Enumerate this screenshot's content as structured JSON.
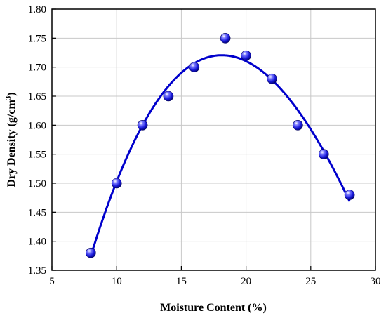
{
  "chart_data": {
    "type": "line",
    "title": "",
    "xlabel": "Moisture Content (%)",
    "ylabel_main": "Dry Density (g/cm",
    "ylabel_sup": "3",
    "ylabel_tail": ")",
    "xlim": [
      5,
      30
    ],
    "ylim": [
      1.35,
      1.8
    ],
    "xticks": [
      5,
      10,
      15,
      20,
      25,
      30
    ],
    "xtick_labels": [
      "5",
      "10",
      "15",
      "20",
      "25",
      "30"
    ],
    "yticks": [
      1.35,
      1.4,
      1.45,
      1.5,
      1.55,
      1.6,
      1.65,
      1.7,
      1.75,
      1.8
    ],
    "ytick_labels": [
      "1.35",
      "1.40",
      "1.45",
      "1.50",
      "1.55",
      "1.60",
      "1.65",
      "1.70",
      "1.75",
      "1.80"
    ],
    "grid": true,
    "legend": "none",
    "series": [
      {
        "x": [
          8,
          10,
          12,
          14,
          16,
          18.4,
          20,
          22,
          24,
          26,
          28
        ],
        "y": [
          1.38,
          1.5,
          1.6,
          1.65,
          1.7,
          1.75,
          1.72,
          1.68,
          1.6,
          1.55,
          1.48
        ],
        "line_color": "#0000cc",
        "marker_color": "#1a1adc",
        "curve": "smoothed fit"
      }
    ]
  }
}
